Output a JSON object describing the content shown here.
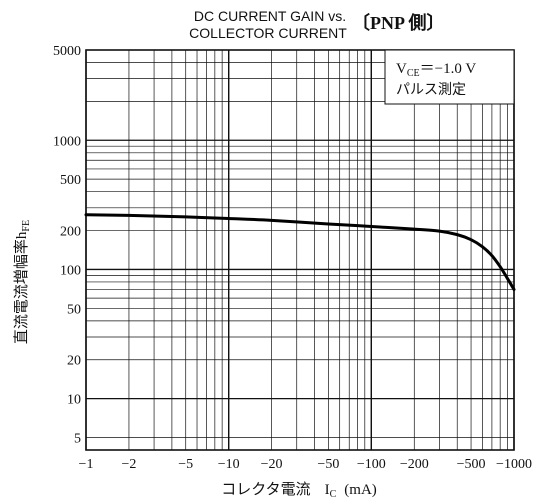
{
  "chart_data": {
    "type": "line",
    "title_line1": "DC CURRENT GAIN vs.",
    "title_line2": "COLLECTOR CURRENT",
    "title_suffix": "〔PNP 側〕",
    "xlabel_prefix": "コレクタ電流",
    "xlabel_symbol": "I",
    "xlabel_sub": "C",
    "xlabel_unit": "(mA)",
    "ylabel_text": "直流電流増幅率",
    "ylabel_symbol": "h",
    "ylabel_sub": "FE",
    "x_scale": "log",
    "y_scale": "log",
    "xlim": [
      1,
      1000
    ],
    "ylim": [
      4,
      5000
    ],
    "x_ticks": [
      {
        "value": 1,
        "label": "−1"
      },
      {
        "value": 2,
        "label": "−2"
      },
      {
        "value": 5,
        "label": "−5"
      },
      {
        "value": 10,
        "label": "−10"
      },
      {
        "value": 20,
        "label": "−20"
      },
      {
        "value": 50,
        "label": "−50"
      },
      {
        "value": 100,
        "label": "−100"
      },
      {
        "value": 200,
        "label": "−200"
      },
      {
        "value": 500,
        "label": "−500"
      },
      {
        "value": 1000,
        "label": "−1000"
      }
    ],
    "y_ticks": [
      {
        "value": 5,
        "label": "5"
      },
      {
        "value": 10,
        "label": "10"
      },
      {
        "value": 20,
        "label": "20"
      },
      {
        "value": 50,
        "label": "50"
      },
      {
        "value": 100,
        "label": "100"
      },
      {
        "value": 200,
        "label": "200"
      },
      {
        "value": 500,
        "label": "500"
      },
      {
        "value": 1000,
        "label": "1000"
      },
      {
        "value": 5000,
        "label": "5000"
      }
    ],
    "grid": true,
    "legend": {
      "position": "top-right",
      "line1_symbol": "V",
      "line1_sub": "CE",
      "line1_value": "＝−1.0 V",
      "line2": "パルス測定"
    },
    "series": [
      {
        "x": [
          1,
          2,
          5,
          10,
          20,
          50,
          100,
          200,
          300,
          400,
          500,
          600,
          700,
          800,
          900,
          1000
        ],
        "y": [
          265,
          262,
          255,
          248,
          240,
          225,
          215,
          205,
          198,
          186,
          170,
          150,
          128,
          105,
          85,
          70
        ]
      }
    ]
  }
}
